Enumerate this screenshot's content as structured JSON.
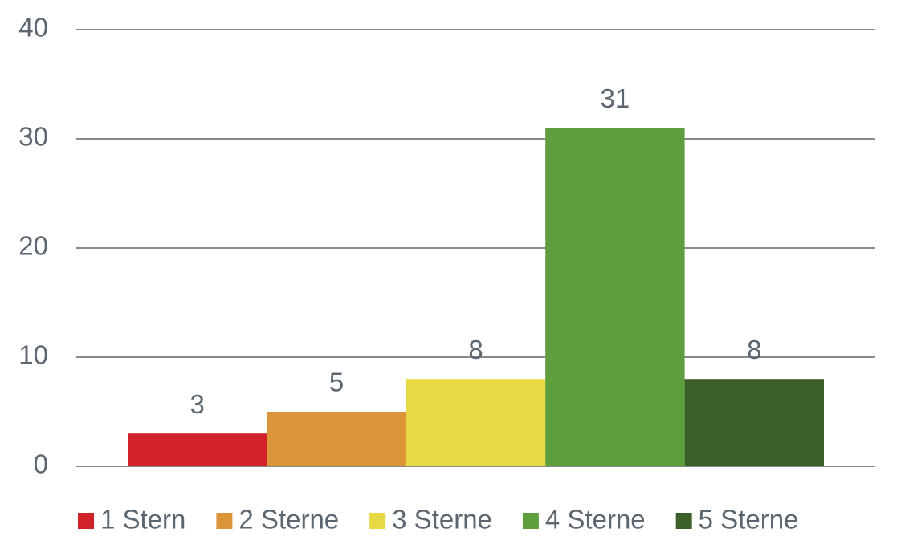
{
  "chart_data": {
    "type": "bar",
    "series": [
      {
        "name": "1 Stern",
        "color": "#d12229",
        "values": [
          3
        ]
      },
      {
        "name": "2 Sterne",
        "color": "#db963a",
        "values": [
          5
        ]
      },
      {
        "name": "3 Sterne",
        "color": "#e8d843",
        "values": [
          8
        ]
      },
      {
        "name": "4 Sterne",
        "color": "#5e9e3c",
        "values": [
          31
        ]
      },
      {
        "name": "5 Sterne",
        "color": "#3b6129",
        "values": [
          8
        ]
      }
    ],
    "ylim": [
      0,
      40
    ],
    "yticks": [
      0,
      10,
      20,
      30,
      40
    ],
    "grid": true,
    "data_labels": true,
    "legend": "bottom"
  }
}
